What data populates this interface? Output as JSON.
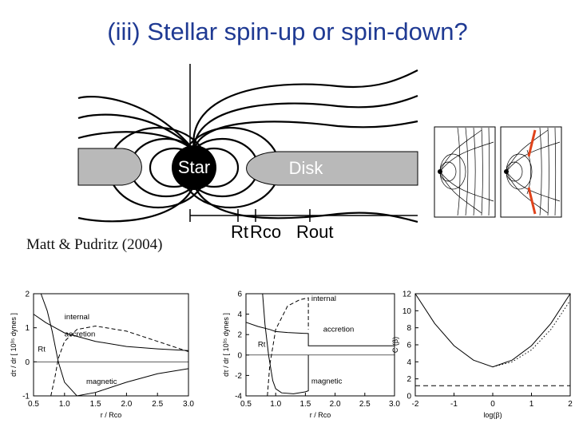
{
  "slide": {
    "title": "(iii) Stellar spin-up or spin-down?",
    "citation": "Matt & Pudritz (2004)"
  },
  "diagram": {
    "star_label": "Star",
    "disk_label": "Disk",
    "radius_labels": [
      "Rt",
      "Rco",
      "Rout"
    ]
  },
  "colors": {
    "title": "#1f3a93",
    "disk": "#b9b9b9",
    "highlight": "#e0431b"
  },
  "chart_data": [
    {
      "type": "line",
      "ylabel": "dτ / dr  [ 10³⁵ dynes ]",
      "xlabel": "r / Rco",
      "xlim": [
        0.5,
        3.0
      ],
      "ylim": [
        -1,
        2
      ],
      "x_ticks": [
        "0.5",
        "1.0",
        "1.5",
        "2.0",
        "2.5",
        "3.0"
      ],
      "y_ticks": [
        "-1",
        "0",
        "1",
        "2"
      ],
      "annotations": [
        "internal",
        "accretion",
        "Rt",
        "magnetic"
      ],
      "series": [
        {
          "name": "internal",
          "x": [
            0.78,
            0.85,
            0.9,
            1.0,
            1.2,
            1.5,
            2.0,
            2.5,
            3.0
          ],
          "y": [
            -1.0,
            -0.4,
            0.1,
            0.6,
            0.95,
            1.05,
            0.9,
            0.6,
            0.3
          ]
        },
        {
          "name": "accretion",
          "x": [
            0.5,
            0.7,
            0.85,
            1.0,
            1.5,
            2.0,
            2.5,
            3.0
          ],
          "y": [
            1.4,
            1.15,
            1.0,
            0.85,
            0.6,
            0.45,
            0.38,
            0.33
          ]
        },
        {
          "name": "magnetic",
          "x": [
            0.62,
            0.72,
            0.8,
            0.9,
            1.0,
            1.2,
            1.5,
            2.0,
            2.5,
            3.0
          ],
          "y": [
            2.0,
            1.5,
            0.9,
            0.0,
            -0.6,
            -1.0,
            -0.9,
            -0.6,
            -0.35,
            -0.2
          ]
        }
      ]
    },
    {
      "type": "line",
      "ylabel": "dτ / dr  [ 10³⁵ dynes ]",
      "xlabel": "r / Rco",
      "xlim": [
        0.5,
        3.0
      ],
      "ylim": [
        -4,
        6
      ],
      "x_ticks": [
        "0.5",
        "1.0",
        "1.5",
        "2.0",
        "2.5",
        "3.0"
      ],
      "y_ticks": [
        "-4",
        "-2",
        "0",
        "2",
        "4",
        "6"
      ],
      "annotations": [
        "internal",
        "accretion",
        "Rt",
        "magnetic"
      ],
      "series": [
        {
          "name": "internal",
          "x": [
            0.86,
            0.9,
            1.0,
            1.2,
            1.4,
            1.55,
            1.55
          ],
          "y": [
            -4.0,
            -1.0,
            2.5,
            4.8,
            5.4,
            5.6,
            2.5
          ]
        },
        {
          "name": "accretion",
          "x": [
            0.5,
            0.7,
            0.9,
            1.0,
            1.2,
            1.55,
            1.55,
            2.0,
            3.0
          ],
          "y": [
            3.2,
            2.8,
            2.5,
            2.3,
            2.2,
            2.1,
            0.9,
            0.9,
            0.9
          ]
        },
        {
          "name": "magnetic",
          "x": [
            0.78,
            0.82,
            0.88,
            0.95,
            1.0,
            1.1,
            1.3,
            1.5,
            1.55,
            1.55
          ],
          "y": [
            6.0,
            3.0,
            0.0,
            -2.5,
            -3.3,
            -3.7,
            -3.8,
            -3.6,
            -3.5,
            0.0
          ]
        }
      ]
    },
    {
      "type": "line",
      "ylabel": "C (β)",
      "xlabel": "log(β)",
      "xlim": [
        -2,
        2
      ],
      "ylim": [
        0,
        12
      ],
      "x_ticks": [
        "-2",
        "-1",
        "0",
        "1",
        "2"
      ],
      "y_ticks": [
        "0",
        "2",
        "4",
        "6",
        "8",
        "10",
        "12"
      ],
      "series": [
        {
          "name": "solid",
          "x": [
            -2.0,
            -1.5,
            -1.0,
            -0.5,
            0.0,
            0.5,
            1.0,
            1.5,
            2.0
          ],
          "y": [
            12.0,
            8.5,
            5.9,
            4.2,
            3.4,
            4.2,
            5.9,
            8.5,
            12.0
          ]
        },
        {
          "name": "dotted",
          "x": [
            0.0,
            0.5,
            1.0,
            1.5,
            2.0
          ],
          "y": [
            3.4,
            4.0,
            5.4,
            7.8,
            11.2
          ]
        },
        {
          "name": "dashed",
          "x": [
            -2.0,
            2.0
          ],
          "y": [
            1.2,
            1.2
          ]
        }
      ]
    }
  ]
}
